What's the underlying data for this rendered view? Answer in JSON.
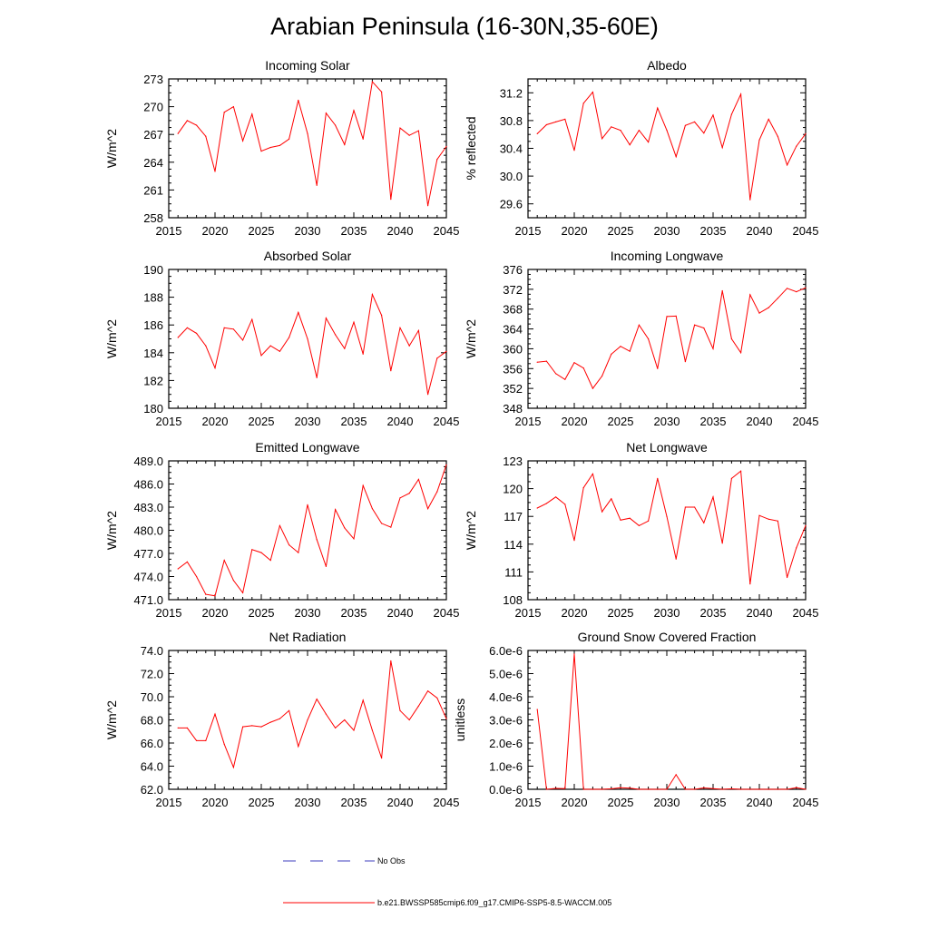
{
  "title": "Arabian Peninsula (16-30N,35-60E)",
  "colors": {
    "model": "#ff0000",
    "obs": "#3f3fbf",
    "axis": "#000000"
  },
  "legend": {
    "obs_label": "No Obs",
    "model_label": "b.e21.BWSSP585cmip6.f09_g17.CMIP6-SSP5-8.5-WACCM.005"
  },
  "chart_data": [
    {
      "type": "line",
      "title": "Incoming Solar",
      "ylabel": "W/m^2",
      "xlim": [
        2015,
        2045
      ],
      "ylim": [
        258,
        273
      ],
      "yticks": [
        258,
        261,
        264,
        267,
        270,
        273
      ],
      "ytick_labels": [
        "258",
        "261",
        "264",
        "267",
        "270",
        "273"
      ],
      "xticks": [
        2015,
        2020,
        2025,
        2030,
        2035,
        2040,
        2045
      ],
      "x": [
        2016,
        2017,
        2018,
        2019,
        2020,
        2021,
        2022,
        2023,
        2024,
        2025,
        2026,
        2027,
        2028,
        2029,
        2030,
        2031,
        2032,
        2033,
        2034,
        2035,
        2036,
        2037,
        2038,
        2039,
        2040,
        2041,
        2042,
        2043,
        2044,
        2045
      ],
      "values": [
        267.1,
        268.5,
        268.0,
        266.8,
        263.0,
        269.4,
        270.0,
        266.3,
        269.2,
        265.2,
        265.6,
        265.8,
        266.5,
        270.7,
        267.1,
        261.5,
        269.3,
        268.0,
        265.9,
        269.6,
        266.5,
        272.7,
        271.6,
        260.0,
        267.7,
        266.9,
        267.4,
        259.3,
        264.3,
        265.7
      ]
    },
    {
      "type": "line",
      "title": "Albedo",
      "ylabel": "% reflected",
      "xlim": [
        2015,
        2045
      ],
      "ylim": [
        29.4,
        31.4
      ],
      "yticks": [
        29.6,
        30.0,
        30.4,
        30.8,
        31.2
      ],
      "ytick_labels": [
        "29.6",
        "30.0",
        "30.4",
        "30.8",
        "31.2"
      ],
      "xticks": [
        2015,
        2020,
        2025,
        2030,
        2035,
        2040,
        2045
      ],
      "x": [
        2016,
        2017,
        2018,
        2019,
        2020,
        2021,
        2022,
        2023,
        2024,
        2025,
        2026,
        2027,
        2028,
        2029,
        2030,
        2031,
        2032,
        2033,
        2034,
        2035,
        2036,
        2037,
        2038,
        2039,
        2040,
        2041,
        2042,
        2043,
        2044,
        2045
      ],
      "values": [
        30.61,
        30.74,
        30.78,
        30.82,
        30.37,
        31.05,
        31.21,
        30.54,
        30.71,
        30.66,
        30.45,
        30.66,
        30.49,
        30.98,
        30.66,
        30.28,
        30.73,
        30.78,
        30.62,
        30.88,
        30.41,
        30.89,
        31.18,
        29.66,
        30.52,
        30.82,
        30.57,
        30.16,
        30.43,
        30.61
      ]
    },
    {
      "type": "line",
      "title": "Absorbed Solar",
      "ylabel": "W/m^2",
      "xlim": [
        2015,
        2045
      ],
      "ylim": [
        180,
        190
      ],
      "yticks": [
        180,
        182,
        184,
        186,
        188,
        190
      ],
      "ytick_labels": [
        "180",
        "182",
        "184",
        "186",
        "188",
        "190"
      ],
      "xticks": [
        2015,
        2020,
        2025,
        2030,
        2035,
        2040,
        2045
      ],
      "x": [
        2016,
        2017,
        2018,
        2019,
        2020,
        2021,
        2022,
        2023,
        2024,
        2025,
        2026,
        2027,
        2028,
        2029,
        2030,
        2031,
        2032,
        2033,
        2034,
        2035,
        2036,
        2037,
        2038,
        2039,
        2040,
        2041,
        2042,
        2043,
        2044,
        2045
      ],
      "values": [
        185.1,
        185.8,
        185.4,
        184.5,
        182.9,
        185.8,
        185.7,
        184.9,
        186.4,
        183.8,
        184.5,
        184.1,
        185.1,
        186.9,
        185.0,
        182.2,
        186.5,
        185.3,
        184.3,
        186.2,
        183.9,
        188.2,
        186.7,
        182.7,
        185.8,
        184.5,
        185.6,
        181.0,
        183.6,
        184.1
      ]
    },
    {
      "type": "line",
      "title": "Incoming Longwave",
      "ylabel": "W/m^2",
      "xlim": [
        2015,
        2045
      ],
      "ylim": [
        348,
        376
      ],
      "yticks": [
        348,
        352,
        356,
        360,
        364,
        368,
        372,
        376
      ],
      "ytick_labels": [
        "348",
        "352",
        "356",
        "360",
        "364",
        "368",
        "372",
        "376"
      ],
      "xticks": [
        2015,
        2020,
        2025,
        2030,
        2035,
        2040,
        2045
      ],
      "x": [
        2016,
        2017,
        2018,
        2019,
        2020,
        2021,
        2022,
        2023,
        2024,
        2025,
        2026,
        2027,
        2028,
        2029,
        2030,
        2031,
        2032,
        2033,
        2034,
        2035,
        2036,
        2037,
        2038,
        2039,
        2040,
        2041,
        2042,
        2043,
        2044,
        2045
      ],
      "values": [
        357.3,
        357.5,
        355.0,
        353.8,
        357.2,
        356.1,
        352.0,
        354.5,
        358.9,
        360.5,
        359.5,
        364.8,
        362.0,
        356.0,
        366.5,
        366.6,
        357.4,
        364.8,
        364.2,
        360.0,
        371.7,
        362.0,
        359.2,
        370.9,
        367.2,
        368.3,
        370.2,
        372.2,
        371.5,
        372.3
      ]
    },
    {
      "type": "line",
      "title": "Emitted Longwave",
      "ylabel": "W/m^2",
      "xlim": [
        2015,
        2045
      ],
      "ylim": [
        471,
        489
      ],
      "yticks": [
        471,
        474,
        477,
        480,
        483,
        486,
        489
      ],
      "ytick_labels": [
        "471.0",
        "474.0",
        "477.0",
        "480.0",
        "483.0",
        "486.0",
        "489.0"
      ],
      "xticks": [
        2015,
        2020,
        2025,
        2030,
        2035,
        2040,
        2045
      ],
      "x": [
        2016,
        2017,
        2018,
        2019,
        2020,
        2021,
        2022,
        2023,
        2024,
        2025,
        2026,
        2027,
        2028,
        2029,
        2030,
        2031,
        2032,
        2033,
        2034,
        2035,
        2036,
        2037,
        2038,
        2039,
        2040,
        2041,
        2042,
        2043,
        2044,
        2045
      ],
      "values": [
        475.0,
        475.9,
        474.0,
        471.7,
        471.5,
        476.1,
        473.5,
        471.9,
        477.5,
        477.1,
        476.1,
        480.6,
        478.1,
        477.1,
        483.3,
        478.8,
        475.3,
        482.7,
        480.3,
        478.9,
        485.8,
        482.8,
        480.9,
        480.4,
        484.2,
        484.8,
        486.6,
        482.8,
        485.0,
        488.5
      ]
    },
    {
      "type": "line",
      "title": "Net Longwave",
      "ylabel": "W/m^2",
      "xlim": [
        2015,
        2045
      ],
      "ylim": [
        108,
        123
      ],
      "yticks": [
        108,
        111,
        114,
        117,
        120,
        123
      ],
      "ytick_labels": [
        "108",
        "111",
        "114",
        "117",
        "120",
        "123"
      ],
      "xticks": [
        2015,
        2020,
        2025,
        2030,
        2035,
        2040,
        2045
      ],
      "x": [
        2016,
        2017,
        2018,
        2019,
        2020,
        2021,
        2022,
        2023,
        2024,
        2025,
        2026,
        2027,
        2028,
        2029,
        2030,
        2031,
        2032,
        2033,
        2034,
        2035,
        2036,
        2037,
        2038,
        2039,
        2040,
        2041,
        2042,
        2043,
        2044,
        2045
      ],
      "values": [
        117.9,
        118.4,
        119.1,
        118.3,
        114.4,
        120.1,
        121.6,
        117.5,
        118.9,
        116.6,
        116.8,
        116.0,
        116.5,
        121.1,
        117.0,
        112.4,
        118.0,
        118.0,
        116.3,
        119.1,
        114.1,
        121.1,
        121.9,
        109.7,
        117.1,
        116.7,
        116.5,
        110.4,
        113.6,
        116.0
      ]
    },
    {
      "type": "line",
      "title": "Net Radiation",
      "ylabel": "W/m^2",
      "xlim": [
        2015,
        2045
      ],
      "ylim": [
        62,
        74
      ],
      "yticks": [
        62,
        64,
        66,
        68,
        70,
        72,
        74
      ],
      "ytick_labels": [
        "62.0",
        "64.0",
        "66.0",
        "68.0",
        "70.0",
        "72.0",
        "74.0"
      ],
      "xticks": [
        2015,
        2020,
        2025,
        2030,
        2035,
        2040,
        2045
      ],
      "x": [
        2016,
        2017,
        2018,
        2019,
        2020,
        2021,
        2022,
        2023,
        2024,
        2025,
        2026,
        2027,
        2028,
        2029,
        2030,
        2031,
        2032,
        2033,
        2034,
        2035,
        2036,
        2037,
        2038,
        2039,
        2040,
        2041,
        2042,
        2043,
        2044,
        2045
      ],
      "values": [
        67.3,
        67.3,
        66.2,
        66.2,
        68.5,
        65.9,
        63.9,
        67.4,
        67.5,
        67.4,
        67.8,
        68.1,
        68.8,
        65.7,
        68.0,
        69.8,
        68.5,
        67.3,
        68.0,
        67.1,
        69.7,
        67.1,
        64.7,
        73.1,
        68.8,
        68.0,
        69.2,
        70.5,
        69.9,
        68.1
      ]
    },
    {
      "type": "line",
      "title": "Ground Snow Covered Fraction",
      "ylabel": "unitless",
      "xlim": [
        2015,
        2045
      ],
      "ylim": [
        0,
        6e-06
      ],
      "yticks": [
        0,
        1e-06,
        2e-06,
        3e-06,
        4e-06,
        5e-06,
        6e-06
      ],
      "ytick_labels": [
        "0.0e-6",
        "1.0e-6",
        "2.0e-6",
        "3.0e-6",
        "4.0e-6",
        "5.0e-6",
        "6.0e-6"
      ],
      "xticks": [
        2015,
        2020,
        2025,
        2030,
        2035,
        2040,
        2045
      ],
      "x": [
        2016,
        2017,
        2018,
        2019,
        2020,
        2021,
        2022,
        2023,
        2024,
        2025,
        2026,
        2027,
        2028,
        2029,
        2030,
        2031,
        2032,
        2033,
        2034,
        2035,
        2036,
        2037,
        2038,
        2039,
        2040,
        2041,
        2042,
        2043,
        2044,
        2045
      ],
      "values": [
        3.45e-06,
        0,
        4e-08,
        3e-08,
        5.85e-06,
        0,
        0,
        0,
        2e-08,
        7e-08,
        5e-08,
        0,
        0,
        0,
        0,
        6.3e-07,
        0,
        0,
        6e-08,
        3e-08,
        0,
        2e-08,
        0,
        0,
        0,
        0,
        0,
        0,
        7e-08,
        0
      ]
    }
  ]
}
